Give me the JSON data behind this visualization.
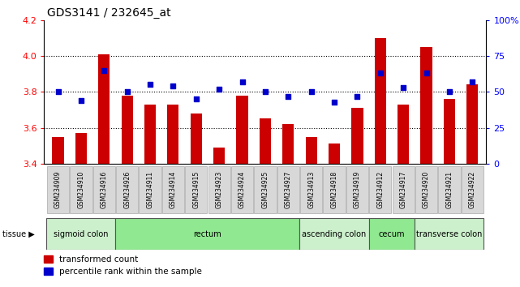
{
  "title": "GDS3141 / 232645_at",
  "samples": [
    "GSM234909",
    "GSM234910",
    "GSM234916",
    "GSM234926",
    "GSM234911",
    "GSM234914",
    "GSM234915",
    "GSM234923",
    "GSM234924",
    "GSM234925",
    "GSM234927",
    "GSM234913",
    "GSM234918",
    "GSM234919",
    "GSM234912",
    "GSM234917",
    "GSM234920",
    "GSM234921",
    "GSM234922"
  ],
  "transformed_count": [
    3.55,
    3.57,
    4.01,
    3.78,
    3.73,
    3.73,
    3.68,
    3.49,
    3.78,
    3.65,
    3.62,
    3.55,
    3.51,
    3.71,
    4.1,
    3.73,
    4.05,
    3.76,
    3.84
  ],
  "percentile_rank": [
    50,
    44,
    65,
    50,
    55,
    54,
    45,
    52,
    57,
    50,
    47,
    50,
    43,
    47,
    63,
    53,
    63,
    50,
    57
  ],
  "ylim_left": [
    3.4,
    4.2
  ],
  "ylim_right": [
    0,
    100
  ],
  "yticks_left": [
    3.4,
    3.6,
    3.8,
    4.0,
    4.2
  ],
  "yticks_right": [
    0,
    25,
    50,
    75,
    100
  ],
  "tissue_groups": [
    {
      "label": "sigmoid colon",
      "start": 0,
      "end": 3,
      "color": "#ccf0cc"
    },
    {
      "label": "rectum",
      "start": 3,
      "end": 11,
      "color": "#90e890"
    },
    {
      "label": "ascending colon",
      "start": 11,
      "end": 14,
      "color": "#ccf0cc"
    },
    {
      "label": "cecum",
      "start": 14,
      "end": 16,
      "color": "#90e890"
    },
    {
      "label": "transverse colon",
      "start": 16,
      "end": 19,
      "color": "#ccf0cc"
    }
  ],
  "bar_color": "#cc0000",
  "dot_color": "#0000cc",
  "bar_width": 0.5,
  "plot_bg": "#ffffff",
  "fig_bg": "#ffffff",
  "label_box_color": "#d8d8d8",
  "label_box_edge": "#aaaaaa"
}
